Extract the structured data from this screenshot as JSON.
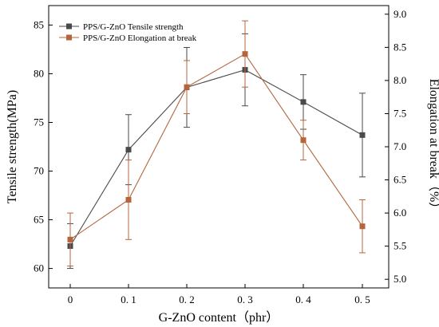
{
  "chart_data": {
    "type": "line",
    "categories": [
      "0",
      "0.1",
      "0.2",
      "0.3",
      "0.4",
      "0.5"
    ],
    "xlabel": "G-ZnO content（phr）",
    "ylabel_left": "Tensile strength(MPa)",
    "ylabel_right": "Elongation at break（%）",
    "ylim_left": [
      58,
      87
    ],
    "yticks_left": [
      "60",
      "65",
      "70",
      "75",
      "80",
      "85"
    ],
    "ylim_right": [
      4.87,
      9.13
    ],
    "yticks_right": [
      "5.0",
      "5.5",
      "6.0",
      "6.5",
      "7.0",
      "7.5",
      "8.0",
      "8.5",
      "9.0"
    ],
    "xticks": [
      "0",
      "0. 1",
      "0. 2",
      "0. 3",
      "0. 4",
      "0. 5"
    ],
    "grid": false,
    "legend_position": "top-left",
    "series": [
      {
        "name": "PPS/G-ZnO Tensile strength",
        "axis": "left",
        "color": "#4a4a4a",
        "values": [
          62.3,
          72.2,
          78.6,
          80.4,
          77.1,
          73.7
        ],
        "errors": [
          2.3,
          3.6,
          4.1,
          3.7,
          2.8,
          4.3
        ]
      },
      {
        "name": "PPS/G-ZnO Elongation at break",
        "axis": "right",
        "color": "#b5653d",
        "values": [
          5.6,
          6.2,
          7.9,
          8.4,
          7.1,
          5.8
        ],
        "errors": [
          0.4,
          0.6,
          0.4,
          0.5,
          0.3,
          0.4
        ]
      }
    ]
  }
}
